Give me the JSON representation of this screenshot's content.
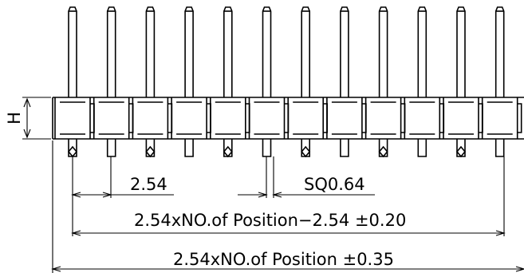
{
  "diagram": {
    "pin_count": 12,
    "labels": {
      "height": "H",
      "pitch": "2.54",
      "pin_size": "SQ0.64",
      "inner_span": "2.54xNO.of Position−2.54 ±0.20",
      "overall_length": "2.54xNO.of Position ±0.35"
    }
  }
}
